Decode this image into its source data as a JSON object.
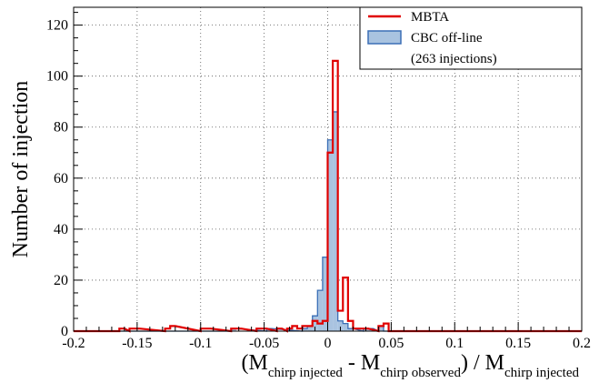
{
  "chart_data": {
    "type": "histogram",
    "ylabel": "Number of injection",
    "xlabel": {
      "open": "(M",
      "sub1": "chirp injected",
      "mid": " - M",
      "sub2": "chirp observed",
      "close": ") / M",
      "sub3": "chirp injected"
    },
    "xlim": [
      -0.2,
      0.2
    ],
    "ylim": [
      0,
      127
    ],
    "x_ticks": [
      -0.2,
      -0.15,
      -0.1,
      -0.05,
      0,
      0.05,
      0.1,
      0.15,
      0.2
    ],
    "x_tick_labels": [
      "-0.2",
      "-0.15",
      "-0.1",
      "-0.05",
      "0",
      "0.05",
      "0.1",
      "0.15",
      "0.2"
    ],
    "y_ticks": [
      0,
      20,
      40,
      60,
      80,
      100,
      120
    ],
    "y_tick_labels": [
      "0",
      "20",
      "40",
      "60",
      "80",
      "100",
      "120"
    ],
    "grid": true,
    "legend_position": "top-right",
    "legend": [
      {
        "label": "MBTA",
        "style": "line",
        "color": "#e00000"
      },
      {
        "label": "CBC off-line",
        "style": "filled",
        "color": "#3b6fb6",
        "fill": "#a9c3e0"
      },
      {
        "label": "(263 injections)",
        "style": "text"
      }
    ],
    "bin_width": 0.004,
    "series": [
      {
        "name": "CBC off-line",
        "color": "#3b6fb6",
        "fill": "#a9c3e0",
        "bins": [
          {
            "x": -0.074,
            "y": 1
          },
          {
            "x": -0.046,
            "y": 1
          },
          {
            "x": -0.018,
            "y": 1
          },
          {
            "x": -0.014,
            "y": 2
          },
          {
            "x": -0.01,
            "y": 6
          },
          {
            "x": -0.006,
            "y": 16
          },
          {
            "x": -0.002,
            "y": 29
          },
          {
            "x": 0.002,
            "y": 75
          },
          {
            "x": 0.006,
            "y": 86
          },
          {
            "x": 0.01,
            "y": 4
          },
          {
            "x": 0.014,
            "y": 3
          },
          {
            "x": 0.018,
            "y": 1
          },
          {
            "x": 0.03,
            "y": 1
          },
          {
            "x": 0.034,
            "y": 1
          },
          {
            "x": 0.042,
            "y": 2
          }
        ]
      },
      {
        "name": "MBTA",
        "color": "#e00000",
        "bins": [
          {
            "x": -0.162,
            "y": 1
          },
          {
            "x": -0.154,
            "y": 1
          },
          {
            "x": -0.15,
            "y": 1
          },
          {
            "x": -0.126,
            "y": 1
          },
          {
            "x": -0.122,
            "y": 2
          },
          {
            "x": -0.098,
            "y": 1
          },
          {
            "x": -0.094,
            "y": 1
          },
          {
            "x": -0.074,
            "y": 1
          },
          {
            "x": -0.07,
            "y": 1
          },
          {
            "x": -0.054,
            "y": 1
          },
          {
            "x": -0.05,
            "y": 1
          },
          {
            "x": -0.038,
            "y": 1
          },
          {
            "x": -0.03,
            "y": 1
          },
          {
            "x": -0.026,
            "y": 2
          },
          {
            "x": -0.022,
            "y": 1
          },
          {
            "x": -0.018,
            "y": 2
          },
          {
            "x": -0.014,
            "y": 2
          },
          {
            "x": -0.01,
            "y": 4
          },
          {
            "x": -0.006,
            "y": 3
          },
          {
            "x": -0.002,
            "y": 4
          },
          {
            "x": 0.002,
            "y": 70
          },
          {
            "x": 0.006,
            "y": 106
          },
          {
            "x": 0.01,
            "y": 8
          },
          {
            "x": 0.014,
            "y": 21
          },
          {
            "x": 0.018,
            "y": 4
          },
          {
            "x": 0.022,
            "y": 1
          },
          {
            "x": 0.026,
            "y": 1
          },
          {
            "x": 0.03,
            "y": 1
          },
          {
            "x": 0.042,
            "y": 2
          },
          {
            "x": 0.046,
            "y": 3
          }
        ]
      }
    ]
  }
}
